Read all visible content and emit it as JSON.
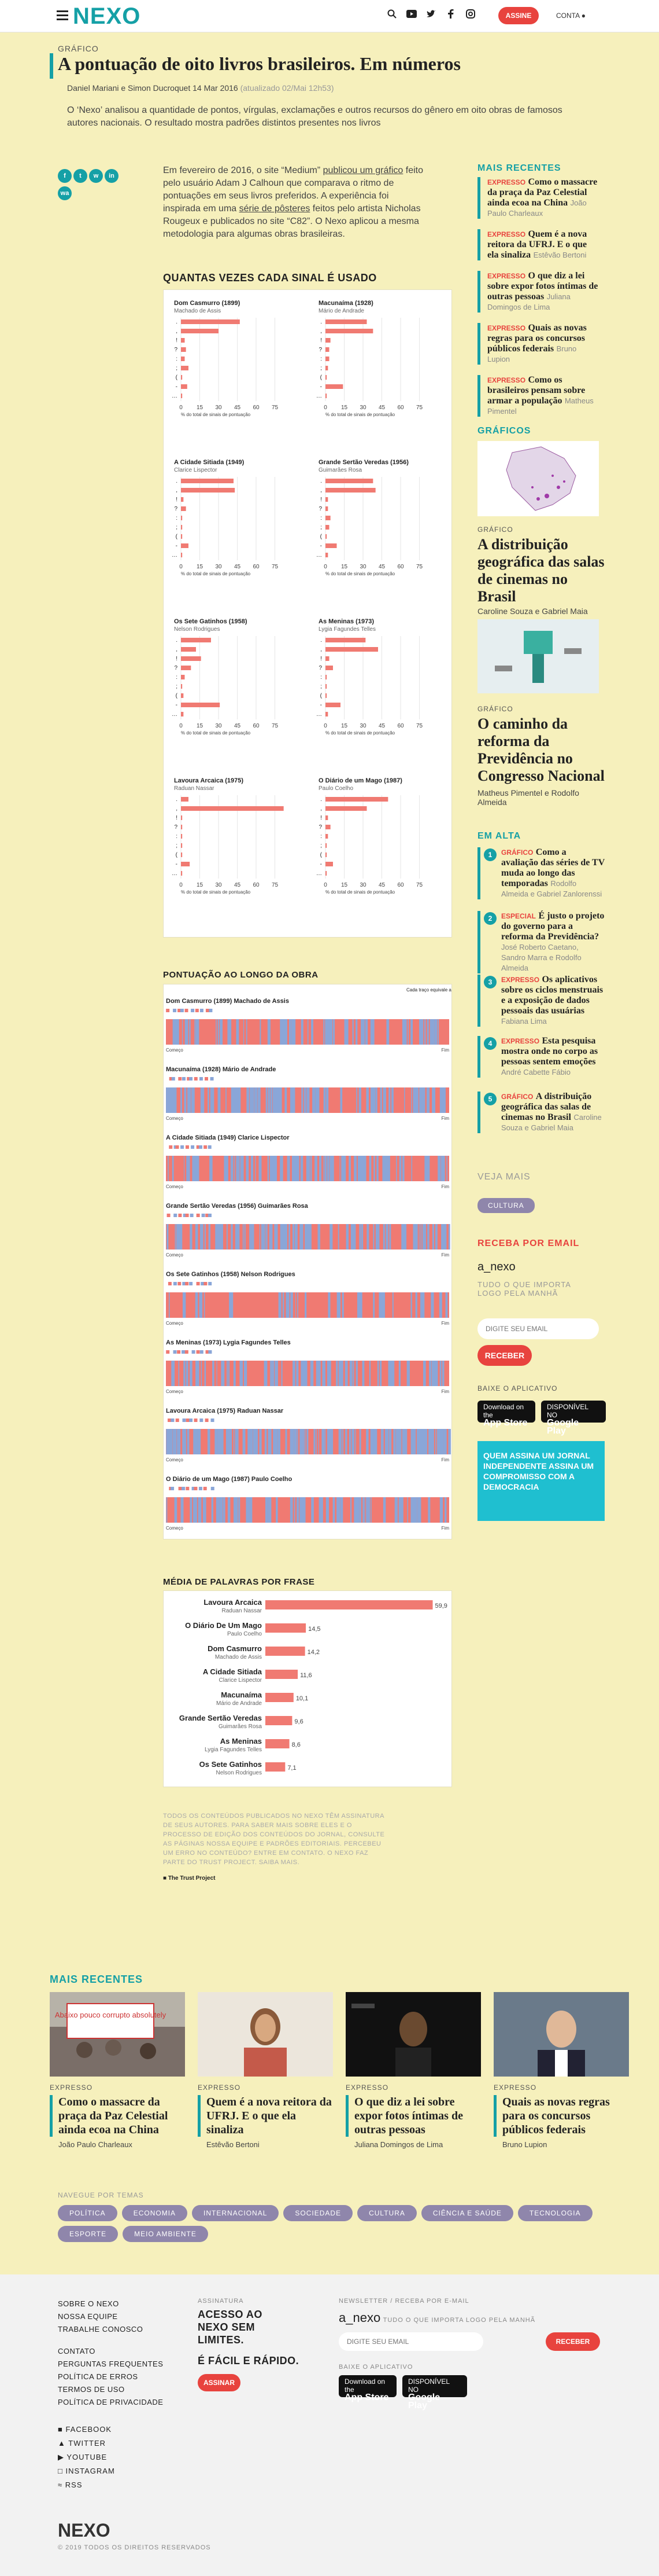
{
  "header": {
    "logo": "NEXO",
    "subscribe": "ASSINE",
    "account": "CONTA",
    "icons": [
      "search-icon",
      "youtube-icon",
      "twitter-icon",
      "facebook-icon",
      "instagram-icon"
    ]
  },
  "article": {
    "section": "GRÁFICO",
    "title": "A pontuação de oito livros brasileiros. Em números",
    "byline": "Daniel Mariani e Simon Ducroquet 14 Mar 2016",
    "updated": "(atualizado 02/Mai 12h53)",
    "lede": "O ‘Nexo’ analisou a quantidade de pontos, vírgulas, exclamações e outros recursos do gênero em oito obras de famosos autores nacionais. O resultado mostra padrões distintos presentes nos livros",
    "intro_1": "Em fevereiro de 2016, o site “Medium” ",
    "intro_link1": "publicou um gráfico",
    "intro_2": " feito pelo usuário Adam J Calhoun que comparava o ritmo de pontuações em seus livros preferidos. A experiência foi inspirada em uma ",
    "intro_link2": "série de pôsteres",
    "intro_3": " feitos pelo artista Nicholas Rougeux e publicados no site “C82”. O Nexo aplicou a mesma metodologia para algumas obras brasileiras.",
    "share": [
      "f",
      "t",
      "w",
      "in",
      "wa"
    ]
  },
  "bars_chart": {
    "heading": "QUANTAS VEZES CADA SINAL É USADO",
    "axis_caption": "% do total de sinais de pontuação",
    "ticks": [
      "0",
      "15",
      "30",
      "45",
      "60",
      "75"
    ],
    "marks": [
      ".",
      ",",
      "!",
      "?",
      ":",
      ";",
      "(",
      "-",
      "…"
    ],
    "books": [
      {
        "title": "Dom Casmurro (1899)",
        "author": "Machado de Assis",
        "values": [
          47,
          30,
          3,
          4,
          3,
          6,
          1,
          5,
          1
        ]
      },
      {
        "title": "Macunaíma (1928)",
        "author": "Mário de Andrade",
        "values": [
          33,
          38,
          4,
          3,
          3,
          2,
          1,
          14,
          1
        ]
      },
      {
        "title": "A Cidade Sitiada (1949)",
        "author": "Clarice Lispector",
        "values": [
          42,
          43,
          2,
          4,
          1,
          1,
          1,
          6,
          1
        ]
      },
      {
        "title": "Grande Sertão Veredas (1956)",
        "author": "Guimarães Rosa",
        "values": [
          38,
          40,
          2,
          2,
          4,
          3,
          1,
          9,
          2
        ]
      },
      {
        "title": "Os Sete Gatinhos (1958)",
        "author": "Nelson Rodrigues",
        "values": [
          24,
          12,
          16,
          8,
          3,
          1,
          2,
          31,
          2
        ]
      },
      {
        "title": "As Meninas (1973)",
        "author": "Lygia Fagundes Telles",
        "values": [
          32,
          42,
          3,
          6,
          1,
          1,
          1,
          12,
          2
        ]
      },
      {
        "title": "Lavoura Arcaica (1975)",
        "author": "Raduan Nassar",
        "values": [
          6,
          82,
          1,
          1,
          1,
          1,
          1,
          7,
          1
        ]
      },
      {
        "title": "O Diário de um Mago (1987)",
        "author": "Paulo Coelho",
        "values": [
          50,
          33,
          2,
          4,
          2,
          1,
          1,
          6,
          1
        ]
      }
    ]
  },
  "timeline_chart": {
    "heading": "PONTUAÇÃO AO LONGO DA OBRA",
    "note": "Cada traço equivale a uma pontuação presente na obra",
    "start": "Começo",
    "end": "Fim",
    "books": [
      {
        "label": "Dom Casmurro (1899) Machado de Assis",
        "seed": 3,
        "blue": 0.45
      },
      {
        "label": "Macunaíma (1928) Mário de Andrade",
        "seed": 7,
        "blue": 0.55
      },
      {
        "label": "A Cidade Sitiada (1949) Clarice Lispector",
        "seed": 11,
        "blue": 0.5
      },
      {
        "label": "Grande Sertão Veredas (1956) Guimarães Rosa",
        "seed": 17,
        "blue": 0.5
      },
      {
        "label": "Os Sete Gatinhos (1958) Nelson Rodrigues",
        "seed": 23,
        "blue": 0.2
      },
      {
        "label": "As Meninas (1973) Lygia Fagundes Telles",
        "seed": 29,
        "blue": 0.45
      },
      {
        "label": "Lavoura Arcaica (1975) Raduan Nassar",
        "seed": 31,
        "blue": 0.85
      },
      {
        "label": "O Diário de um Mago (1987) Paulo Coelho",
        "seed": 37,
        "blue": 0.45
      }
    ]
  },
  "chart_data": {
    "type": "bar",
    "title": "MÉDIA DE PALAVRAS POR FRASE",
    "categories": [
      "Lavoura Arcaica",
      "O Diário De Um Mago",
      "Dom Casmurro",
      "A Cidade Sitiada",
      "Macunaíma",
      "Grande Sertão Veredas",
      "As Meninas",
      "Os Sete Gatinhos"
    ],
    "authors": [
      "Raduan Nassar",
      "Paulo Coelho",
      "Machado de Assis",
      "Clarice Lispector",
      "Mário de Andrade",
      "Guimarães Rosa",
      "Lygia Fagundes Telles",
      "Nelson Rodrigues"
    ],
    "values": [
      59.9,
      14.5,
      14.2,
      11.6,
      10.1,
      9.6,
      8.6,
      7.1
    ],
    "labels": [
      "59,9",
      "14,5",
      "14,2",
      "11,6",
      "10,1",
      "9,6",
      "8,6",
      "7,1"
    ],
    "xlim": [
      0,
      60
    ],
    "color": "#f07a72"
  },
  "notes": {
    "text": "TODOS OS CONTEÚDOS PUBLICADOS NO NEXO TÊM ASSINATURA DE SEUS AUTORES. PARA SABER MAIS SOBRE ELES E O PROCESSO DE EDIÇÃO DOS CONTEÚDOS DO JORNAL, CONSULTE AS PÁGINAS NOSSA EQUIPE E PADRÕES EDITORIAIS. PERCEBEU UM ERRO NO CONTEÚDO? ENTRE EM CONTATO. O NEXO FAZ PARTE DO TRUST PROJECT. SAIBA MAIS.",
    "trust": "The Trust Project"
  },
  "sidebar": {
    "recent_heading": "MAIS RECENTES",
    "recent": [
      {
        "cat": "EXPRESSO",
        "title": "Como o massacre da praça da Paz Celestial ainda ecoa na China",
        "author": "João Paulo Charleaux"
      },
      {
        "cat": "EXPRESSO",
        "title": "Quem é a nova reitora da UFRJ. E o que ela sinaliza",
        "author": "Estêvão Bertoni"
      },
      {
        "cat": "EXPRESSO",
        "title": "O que diz a lei sobre expor fotos íntimas de outras pessoas",
        "author": "Juliana Domingos de Lima"
      },
      {
        "cat": "EXPRESSO",
        "title": "Quais as novas regras para os concursos públicos federais",
        "author": "Bruno Lupion"
      },
      {
        "cat": "EXPRESSO",
        "title": "Como os brasileiros pensam sobre armar a população",
        "author": "Matheus Pimentel"
      }
    ],
    "graphics_heading": "GRÁFICOS",
    "graphics": [
      {
        "cat": "GRÁFICO",
        "title": "A distribuição geográfica das salas de cinemas no Brasil",
        "author": "Caroline Souza e Gabriel Maia"
      },
      {
        "cat": "GRÁFICO",
        "title": "O caminho da reforma da Previdência no Congresso Nacional",
        "author": "Matheus Pimentel e Rodolfo Almeida"
      }
    ],
    "alta_heading": "EM ALTA",
    "alta": [
      {
        "n": "1",
        "cat": "GRÁFICO",
        "title": "Como a avaliação das séries de TV muda ao longo das temporadas",
        "author": "Rodolfo Almeida e Gabriel Zanlorenssi"
      },
      {
        "n": "2",
        "cat": "ESPECIAL",
        "title": "É justo o projeto do governo para a reforma da Previdência?",
        "author": "José Roberto Caetano, Sandro Marra e Rodolfo Almeida"
      },
      {
        "n": "3",
        "cat": "EXPRESSO",
        "title": "Os aplicativos sobre os ciclos menstruais e a exposição de dados pessoais das usuárias",
        "author": "Fabiana Lima"
      },
      {
        "n": "4",
        "cat": "EXPRESSO",
        "title": "Esta pesquisa mostra onde no corpo as pessoas sentem emoções",
        "author": "André Cabette Fábio"
      },
      {
        "n": "5",
        "cat": "GRÁFICO",
        "title": "A distribuição geográfica das salas de cinemas no Brasil",
        "author": "Caroline Souza e Gabriel Maia"
      }
    ],
    "veja_mais": "VEJA MAIS",
    "tag": "CULTURA",
    "receba": "RECEBA POR EMAIL",
    "anexo": "a_nexo",
    "anexo_sub": "TUDO O QUE IMPORTA LOGO PELA MANHÃ",
    "email_placeholder": "DIGITE SEU EMAIL",
    "receber": "RECEBER",
    "baixe": "BAIXE O APLICATIVO",
    "appstore_small": "Download on the",
    "appstore": "App Store",
    "googleplay_small": "DISPONÍVEL NO",
    "googleplay": "Google Play",
    "promo": "QUEM ASSINA UM JORNAL INDEPENDENTE ASSINA UM COMPROMISSO COM A DEMOCRACIA"
  },
  "recent_bottom": {
    "heading": "MAIS RECENTES",
    "cards": [
      {
        "cat": "EXPRESSO",
        "title": "Como o massacre da praça da Paz Celestial ainda ecoa na China",
        "author": "João Paulo Charleaux"
      },
      {
        "cat": "EXPRESSO",
        "title": "Quem é a nova reitora da UFRJ. E o que ela sinaliza",
        "author": "Estêvão Bertoni"
      },
      {
        "cat": "EXPRESSO",
        "title": "O que diz a lei sobre expor fotos íntimas de outras pessoas",
        "author": "Juliana Domingos de Lima"
      },
      {
        "cat": "EXPRESSO",
        "title": "Quais as novas regras para os concursos públicos federais",
        "author": "Bruno Lupion"
      }
    ],
    "poster_text": "Abaixo pouco corrupto absolutely"
  },
  "nav": {
    "heading": "NAVEGUE POR TEMAS",
    "tags": [
      "POLÍTICA",
      "ECONOMIA",
      "INTERNACIONAL",
      "SOCIEDADE",
      "CULTURA",
      "CIÊNCIA E SAÚDE",
      "TECNOLOGIA",
      "ESPORTE",
      "MEIO AMBIENTE"
    ]
  },
  "footer": {
    "links": [
      "SOBRE O NEXO",
      "NOSSA EQUIPE",
      "TRABALHE CONOSCO",
      "",
      "CONTATO",
      "PERGUNTAS FREQUENTES",
      "POLÍTICA DE ERROS",
      "TERMOS DE USO",
      "POLÍTICA DE PRIVACIDADE"
    ],
    "assinatura_label": "ASSINATURA",
    "assinatura_big": "ACESSO AO NEXO SEM LIMITES.",
    "assinatura_big2": "É FÁCIL E RÁPIDO.",
    "assine": "ASSINAR",
    "news_label": "NEWSLETTER / RECEBA POR E-MAIL",
    "anexo": "a_nexo",
    "anexo_sub": "TUDO O QUE IMPORTA LOGO PELA MANHÃ",
    "email_placeholder": "DIGITE SEU EMAIL",
    "receber": "RECEBER",
    "baixe": "BAIXE O APLICATIVO",
    "social": [
      "FACEBOOK",
      "TWITTER",
      "YOUTUBE",
      "INSTAGRAM",
      "RSS"
    ],
    "logo": "NEXO",
    "copyright": "© 2019 TODOS OS DIREITOS RESERVADOS"
  }
}
